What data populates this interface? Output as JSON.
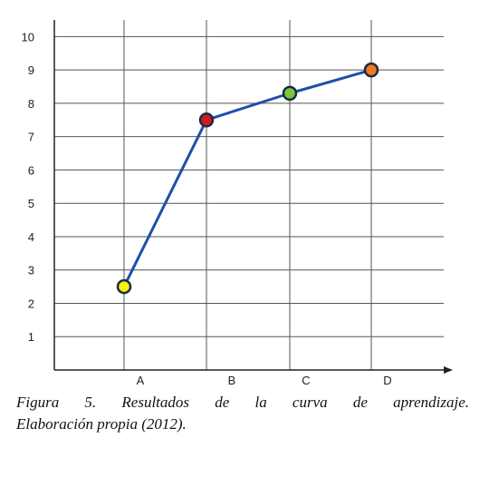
{
  "chart_data": {
    "type": "line",
    "categories": [
      "A",
      "B",
      "C",
      "D"
    ],
    "series": [
      {
        "values": [
          2.5,
          7.5,
          8.3,
          9.0
        ],
        "line_color": "#1f4fa8",
        "marker_colors": [
          "#f2f20a",
          "#d11a1a",
          "#7cc63c",
          "#f07a1a"
        ]
      }
    ],
    "y_ticks": [
      "1",
      "2",
      "3",
      "4",
      "5",
      "6",
      "7",
      "8",
      "9",
      "10"
    ],
    "ylim": [
      0,
      10.5
    ],
    "grid": true,
    "title": "",
    "xlabel": "",
    "ylabel": ""
  },
  "caption": {
    "line1": "Figura 5. Resultados de la curva de aprendizaje.",
    "line2": "Elaboración propia (2012)."
  }
}
